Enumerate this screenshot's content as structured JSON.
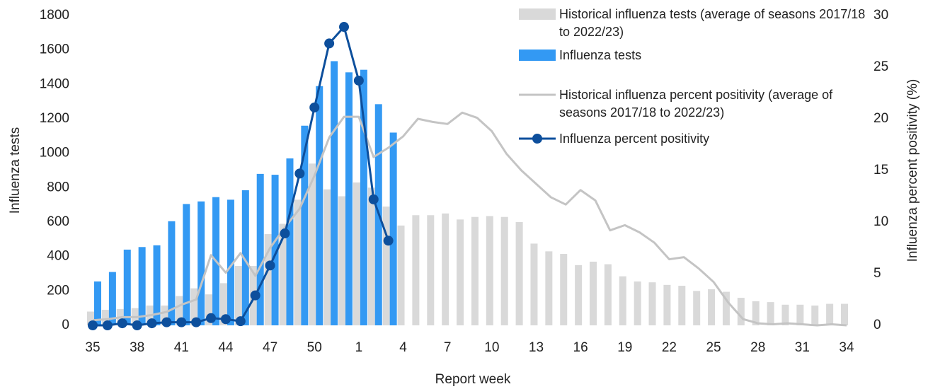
{
  "chart_data": {
    "type": "bar",
    "x_label": "Report week",
    "y_label": "Influenza tests",
    "y2_label": "Influenza percent positivity (%)",
    "categories": [
      "35",
      null,
      null,
      "38",
      null,
      null,
      "41",
      null,
      null,
      "44",
      null,
      null,
      "47",
      null,
      null,
      "50",
      null,
      null,
      "1",
      null,
      null,
      "4",
      null,
      null,
      "7",
      null,
      null,
      "10",
      null,
      null,
      "13",
      null,
      null,
      "16",
      null,
      null,
      "19",
      null,
      null,
      "22",
      null,
      null,
      "25",
      null,
      null,
      "28",
      null,
      null,
      "31",
      null,
      null,
      "34"
    ],
    "ylim": [
      0,
      1800
    ],
    "yticks": [
      0,
      200,
      400,
      600,
      800,
      1000,
      1200,
      1400,
      1600,
      1800
    ],
    "y2lim": [
      0,
      30
    ],
    "y2ticks": [
      0,
      5,
      10,
      15,
      20,
      25,
      30
    ],
    "series": [
      {
        "name": "Historical influenza tests (average of seasons 2017/18 to 2022/23)",
        "type": "bar",
        "color": "#d9d9d9",
        "values": [
          80,
          90,
          95,
          100,
          115,
          115,
          170,
          215,
          180,
          245,
          345,
          345,
          530,
          590,
          730,
          940,
          790,
          750,
          830,
          800,
          690,
          580,
          640,
          640,
          650,
          615,
          630,
          635,
          630,
          600,
          475,
          430,
          415,
          350,
          370,
          355,
          285,
          255,
          250,
          235,
          230,
          200,
          210,
          195,
          160,
          140,
          135,
          120,
          120,
          115,
          125,
          125
        ]
      },
      {
        "name": "Influenza tests",
        "type": "bar",
        "color": "#3399f3",
        "values": [
          255,
          310,
          440,
          455,
          465,
          605,
          705,
          720,
          745,
          730,
          785,
          880,
          875,
          970,
          1160,
          1390,
          1535,
          1470,
          1485,
          1285,
          1120,
          null,
          null,
          null,
          null,
          null,
          null,
          null,
          null,
          null,
          null,
          null,
          null,
          null,
          null,
          null,
          null,
          null,
          null,
          null,
          null,
          null,
          null,
          null,
          null,
          null,
          null,
          null,
          null,
          null,
          null,
          null
        ]
      },
      {
        "name": "Historical influenza percent positivity (average of seasons 2017/18 to 2022/23)",
        "type": "line",
        "axis": "y2",
        "color": "#c4c4c4",
        "values": [
          0.5,
          0.6,
          0.8,
          0.8,
          1.0,
          1.3,
          2.0,
          2.5,
          6.8,
          5.1,
          7.0,
          4.8,
          7.5,
          9.5,
          11.3,
          14.5,
          18.2,
          20.2,
          20.2,
          16.3,
          17.2,
          18.3,
          20.0,
          19.7,
          19.5,
          20.6,
          20.1,
          18.8,
          16.6,
          15.0,
          13.7,
          12.4,
          11.7,
          13.1,
          12.1,
          9.2,
          9.7,
          9.0,
          8.0,
          6.4,
          6.6,
          5.5,
          4.2,
          2.2,
          0.6,
          0.2,
          0.1,
          0.2,
          0.1,
          0.0,
          0.1,
          0.0
        ]
      },
      {
        "name": "Influenza percent positivity",
        "type": "line",
        "axis": "y2",
        "color": "#0d4f9c",
        "marker": true,
        "values": [
          0,
          0,
          0.2,
          0,
          0.2,
          0.3,
          0.3,
          0.3,
          0.7,
          0.6,
          0.4,
          2.9,
          5.8,
          8.9,
          14.7,
          21.1,
          27.3,
          28.9,
          23.7,
          12.2,
          8.2,
          null,
          null,
          null,
          null,
          null,
          null,
          null,
          null,
          null,
          null,
          null,
          null,
          null,
          null,
          null,
          null,
          null,
          null,
          null,
          null,
          null,
          null,
          null,
          null,
          null,
          null,
          null,
          null,
          null,
          null,
          null
        ]
      }
    ]
  }
}
